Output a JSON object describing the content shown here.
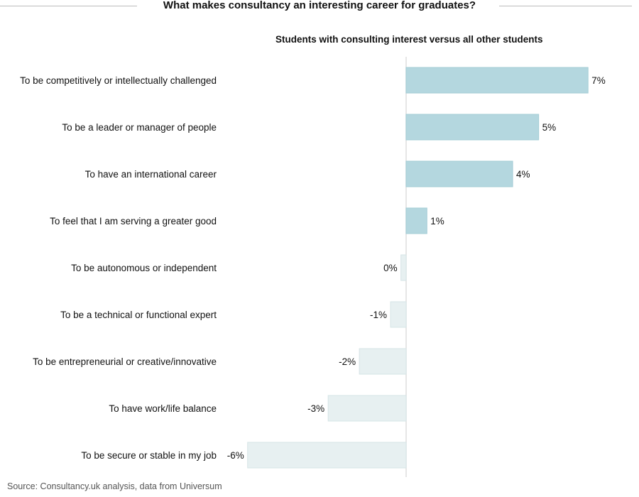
{
  "chart_data": {
    "type": "bar",
    "orientation": "horizontal",
    "title": "What makes consultancy an interesting career for graduates?",
    "subtitle": "Students with consulting interest versus all other students",
    "categories": [
      "To be competitively or intellectually challenged",
      "To be a leader or manager of people",
      "To have an international career",
      "To feel that I am serving a greater good",
      "To be autonomous or independent",
      "To be a technical or functional expert",
      "To be entrepreneurial or creative/innovative",
      "To have work/life balance",
      "To be secure or stable in my job"
    ],
    "values": [
      7.0,
      5.1,
      4.1,
      0.8,
      -0.2,
      -0.6,
      -1.8,
      -3.0,
      -6.1
    ],
    "data_labels": [
      "7%",
      "5%",
      "4%",
      "1%",
      "0%",
      "-1%",
      "-2%",
      "-3%",
      "-6%"
    ],
    "xlim": [
      -6.5,
      7.5
    ],
    "grid": false,
    "colors": {
      "positive": "#b4d7df",
      "negative": "#e7f0f1",
      "positive_edge": "#a3ccd5",
      "negative_edge": "#d6e4e6",
      "zero_line": "#dddddd"
    }
  },
  "source": "Source: Consultancy.uk analysis, data from Universum"
}
